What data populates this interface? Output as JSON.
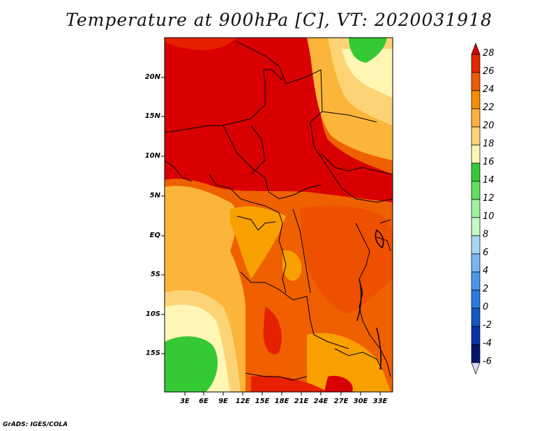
{
  "title": "Temperature at 900hPa [C], VT: 2020031918",
  "credit": "GrADS: IGES/COLA",
  "map": {
    "lat_labels": [
      "20N",
      "15N",
      "10N",
      "5N",
      "EQ",
      "5S",
      "10S",
      "15S"
    ],
    "lon_labels": [
      "3E",
      "6E",
      "9E",
      "12E",
      "15E",
      "18E",
      "21E",
      "24E",
      "27E",
      "30E",
      "33E"
    ]
  },
  "colorbar": {
    "levels": [
      "28",
      "26",
      "24",
      "22",
      "20",
      "18",
      "16",
      "14",
      "12",
      "10",
      "8",
      "6",
      "4",
      "2",
      "0",
      "-2",
      "-4",
      "-6"
    ],
    "colors": [
      "#d80000",
      "#e22a00",
      "#ee5b00",
      "#f78e00",
      "#fdb040",
      "#ffd277",
      "#fff6b4",
      "#36c936",
      "#61e061",
      "#9ef29e",
      "#c8f7c8",
      "#a9d5f5",
      "#7ab6f0",
      "#4f96ea",
      "#2b7ae0",
      "#1656c6",
      "#0a33a5",
      "#04156b"
    ]
  },
  "palette": {
    "t28": "#d80000",
    "t26": "#e62000",
    "t24": "#f06000",
    "t22": "#f8a000",
    "t20": "#fbb53a",
    "t18": "#fdd475",
    "t16": "#fff6b4",
    "t14": "#36c936"
  }
}
